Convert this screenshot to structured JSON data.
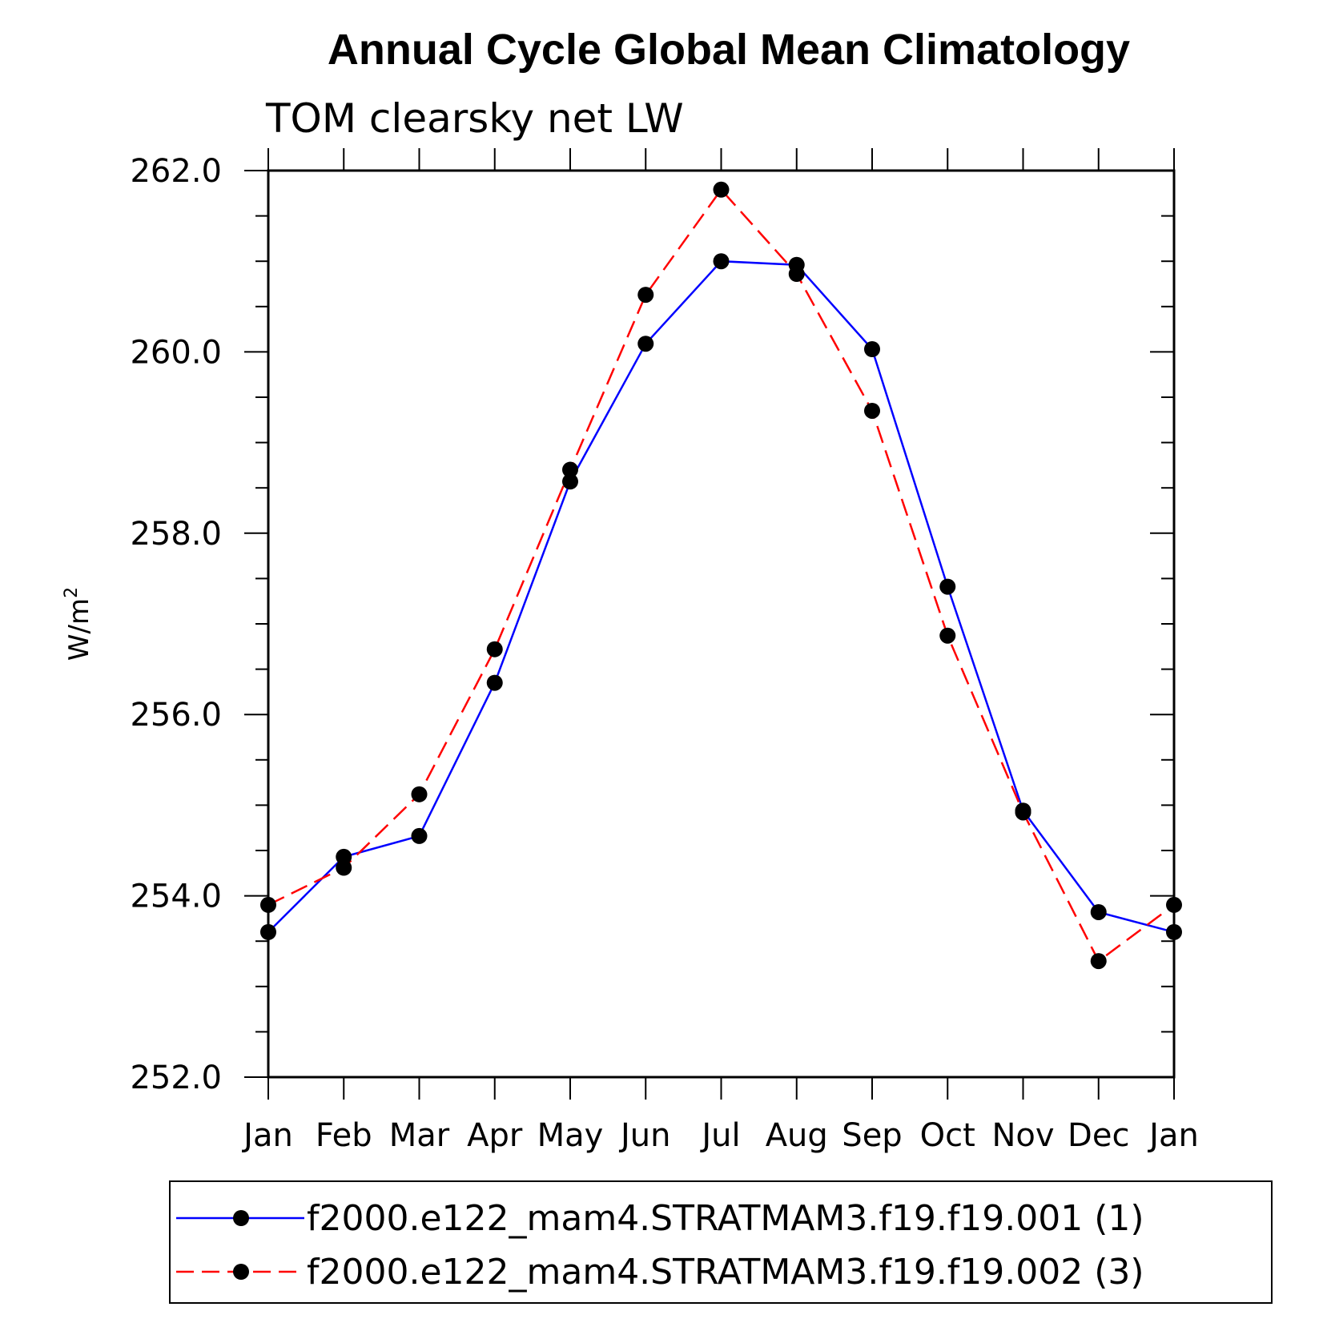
{
  "chart_data": {
    "type": "line",
    "title": "Annual Cycle Global Mean Climatology",
    "subtitle": "TOM clearsky net LW",
    "ylabel": "W/m",
    "ylabel_superscript": "2",
    "ylim": [
      252.0,
      262.0
    ],
    "yticks": [
      "252.0",
      "254.0",
      "256.0",
      "258.0",
      "260.0",
      "262.0"
    ],
    "categories": [
      "Jan",
      "Feb",
      "Mar",
      "Apr",
      "May",
      "Jun",
      "Jul",
      "Aug",
      "Sep",
      "Oct",
      "Nov",
      "Dec",
      "Jan"
    ],
    "series": [
      {
        "name": "f2000.e122_mam4.STRATMAM3.f19.f19.001 (1)",
        "color": "#0000ff",
        "style": "solid",
        "values": [
          253.6,
          254.43,
          254.66,
          256.35,
          258.57,
          260.09,
          261.0,
          260.96,
          260.03,
          257.41,
          254.94,
          253.82,
          253.6
        ]
      },
      {
        "name": "f2000.e122_mam4.STRATMAM3.f19.f19.002 (3)",
        "color": "#ff0000",
        "style": "dashed",
        "values": [
          253.9,
          254.31,
          255.12,
          256.72,
          258.7,
          260.63,
          261.79,
          260.86,
          259.35,
          256.87,
          254.92,
          253.28,
          253.9
        ]
      }
    ]
  }
}
